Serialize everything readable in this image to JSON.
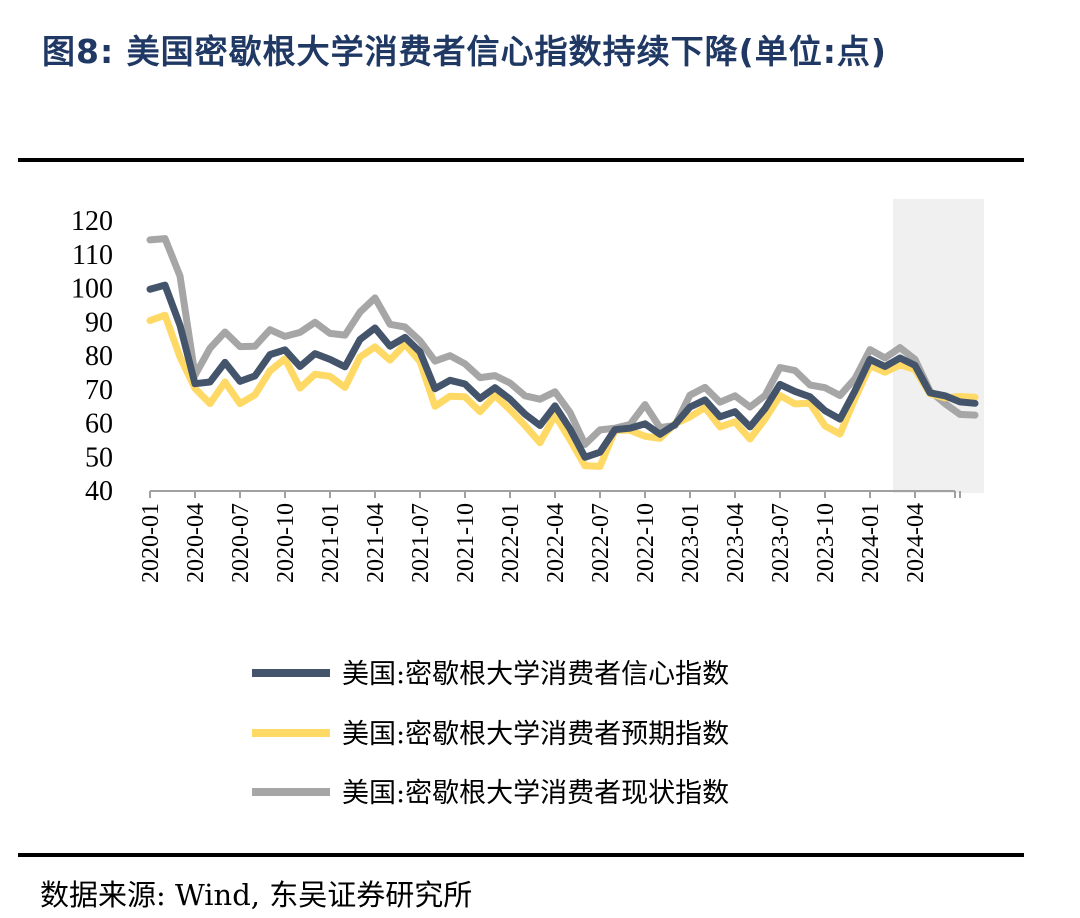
{
  "figure": {
    "title": "图8:  美国密歇根大学消费者信心指数持续下降(单位:点)",
    "source": "数据来源:  Wind,  东吴证券研究所"
  },
  "chart_data": {
    "type": "line",
    "x": [
      "2020-01",
      "2020-02",
      "2020-03",
      "2020-04",
      "2020-05",
      "2020-06",
      "2020-07",
      "2020-08",
      "2020-09",
      "2020-10",
      "2020-11",
      "2020-12",
      "2021-01",
      "2021-02",
      "2021-03",
      "2021-04",
      "2021-05",
      "2021-06",
      "2021-07",
      "2021-08",
      "2021-09",
      "2021-10",
      "2021-11",
      "2021-12",
      "2022-01",
      "2022-02",
      "2022-03",
      "2022-04",
      "2022-05",
      "2022-06",
      "2022-07",
      "2022-08",
      "2022-09",
      "2022-10",
      "2022-11",
      "2022-12",
      "2023-01",
      "2023-02",
      "2023-03",
      "2023-04",
      "2023-05",
      "2023-06",
      "2023-07",
      "2023-08",
      "2023-09",
      "2023-10",
      "2023-11",
      "2023-12",
      "2024-01",
      "2024-02",
      "2024-03",
      "2024-04",
      "2024-05",
      "2024-06",
      "2024-07",
      "2024-08"
    ],
    "xtick_labels": [
      "2020-01",
      "2020-04",
      "2020-07",
      "2020-10",
      "2021-01",
      "2021-04",
      "2021-07",
      "2021-10",
      "2022-01",
      "2022-04",
      "2022-07",
      "2022-10",
      "2023-01",
      "2023-04",
      "2023-07",
      "2023-10",
      "2024-01",
      "2024-04"
    ],
    "ylim": [
      40,
      120
    ],
    "yticks": [
      40,
      50,
      60,
      70,
      80,
      90,
      100,
      110,
      120
    ],
    "highlight_range": [
      "2024-03",
      "2024-08"
    ],
    "series": [
      {
        "name": "美国:密歇根大学消费者信心指数",
        "color": "#44546a",
        "values": [
          99.8,
          101.0,
          89.1,
          71.8,
          72.3,
          78.1,
          72.5,
          74.1,
          80.4,
          81.8,
          76.9,
          80.7,
          79.0,
          76.8,
          84.9,
          88.3,
          82.9,
          85.5,
          81.2,
          70.3,
          72.8,
          71.7,
          67.4,
          70.6,
          67.2,
          62.8,
          59.4,
          65.2,
          58.4,
          50.0,
          51.5,
          58.2,
          58.6,
          59.9,
          56.8,
          59.7,
          64.9,
          67.0,
          62.0,
          63.5,
          59.0,
          64.4,
          71.6,
          69.5,
          67.9,
          63.8,
          61.3,
          69.7,
          79.0,
          76.9,
          79.4,
          77.2,
          69.1,
          68.2,
          66.4,
          66.0
        ]
      },
      {
        "name": "美国:密歇根大学消费者预期指数",
        "color": "#ffd966",
        "values": [
          90.5,
          92.1,
          79.7,
          70.4,
          65.9,
          72.3,
          65.9,
          68.5,
          75.6,
          79.2,
          70.5,
          74.6,
          74.0,
          70.7,
          79.7,
          82.7,
          78.8,
          83.5,
          78.4,
          65.1,
          68.1,
          67.9,
          63.5,
          68.3,
          64.1,
          59.4,
          54.3,
          62.5,
          55.2,
          47.5,
          47.3,
          58.0,
          58.0,
          56.2,
          55.6,
          59.9,
          62.0,
          64.7,
          59.0,
          60.5,
          55.4,
          61.3,
          68.3,
          65.8,
          66.0,
          59.3,
          56.9,
          67.4,
          77.1,
          75.2,
          77.4,
          76.0,
          68.8,
          67.6,
          68.0,
          67.8
        ]
      },
      {
        "name": "美国:密歇根大学消费者现状指数",
        "color": "#a6a6a6",
        "values": [
          114.4,
          114.8,
          103.7,
          74.3,
          82.3,
          87.1,
          82.8,
          82.9,
          87.8,
          85.8,
          87.0,
          90.0,
          86.7,
          86.2,
          93.0,
          97.2,
          89.4,
          88.6,
          84.5,
          78.5,
          80.1,
          77.7,
          73.6,
          74.2,
          72.0,
          68.2,
          67.2,
          69.4,
          63.3,
          53.8,
          58.1,
          58.6,
          59.7,
          65.6,
          58.8,
          59.4,
          68.4,
          70.7,
          66.3,
          68.2,
          64.9,
          68.3,
          76.6,
          75.7,
          71.4,
          70.6,
          68.3,
          73.3,
          81.9,
          79.4,
          82.5,
          79.0,
          69.6,
          65.9,
          62.7,
          62.5
        ]
      }
    ]
  }
}
